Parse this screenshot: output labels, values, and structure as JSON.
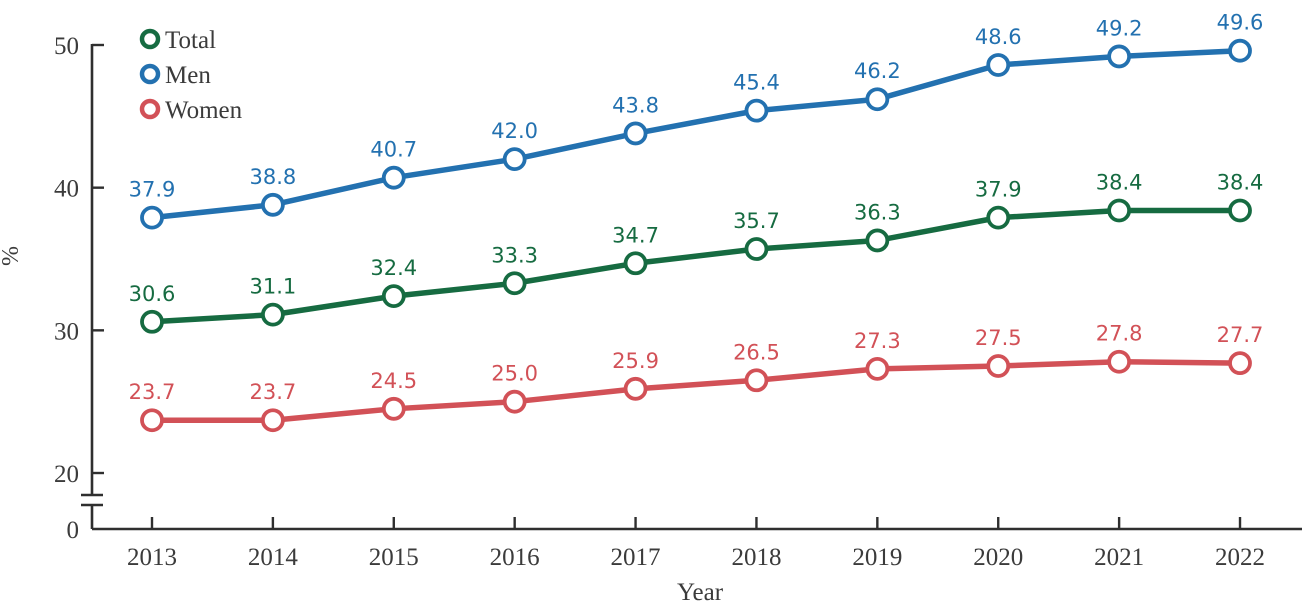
{
  "chart_data": {
    "type": "line",
    "title": "",
    "xlabel": "Year",
    "ylabel": "%",
    "categories": [
      "2013",
      "2014",
      "2015",
      "2016",
      "2017",
      "2018",
      "2019",
      "2020",
      "2021",
      "2022"
    ],
    "y_axis": {
      "broken_axis": true,
      "display_top": 50,
      "display_bottom_of_linear_region": 20,
      "ticks": [
        {
          "label": "50",
          "value": 50
        },
        {
          "label": "40",
          "value": 40
        },
        {
          "label": "30",
          "value": 30
        },
        {
          "label": "20",
          "value": 20
        },
        {
          "label": "0",
          "value": 0
        }
      ]
    },
    "grid": false,
    "legend": {
      "position": "top-left",
      "entries": [
        "Total",
        "Men",
        "Women"
      ]
    },
    "series": [
      {
        "name": "Total",
        "color": "#166B41",
        "values": [
          30.6,
          31.1,
          32.4,
          33.3,
          34.7,
          35.7,
          36.3,
          37.9,
          38.4,
          38.4
        ]
      },
      {
        "name": "Men",
        "color": "#2371B0",
        "values": [
          37.9,
          38.8,
          40.7,
          42.0,
          43.8,
          45.4,
          46.2,
          48.6,
          49.2,
          49.6
        ]
      },
      {
        "name": "Women",
        "color": "#D25157",
        "values": [
          23.7,
          23.7,
          24.5,
          25.0,
          25.9,
          26.5,
          27.3,
          27.5,
          27.8,
          27.7
        ]
      }
    ],
    "colors": {
      "axis_line": "#2f2f2f",
      "axis_text": "#3b3b3b"
    }
  }
}
